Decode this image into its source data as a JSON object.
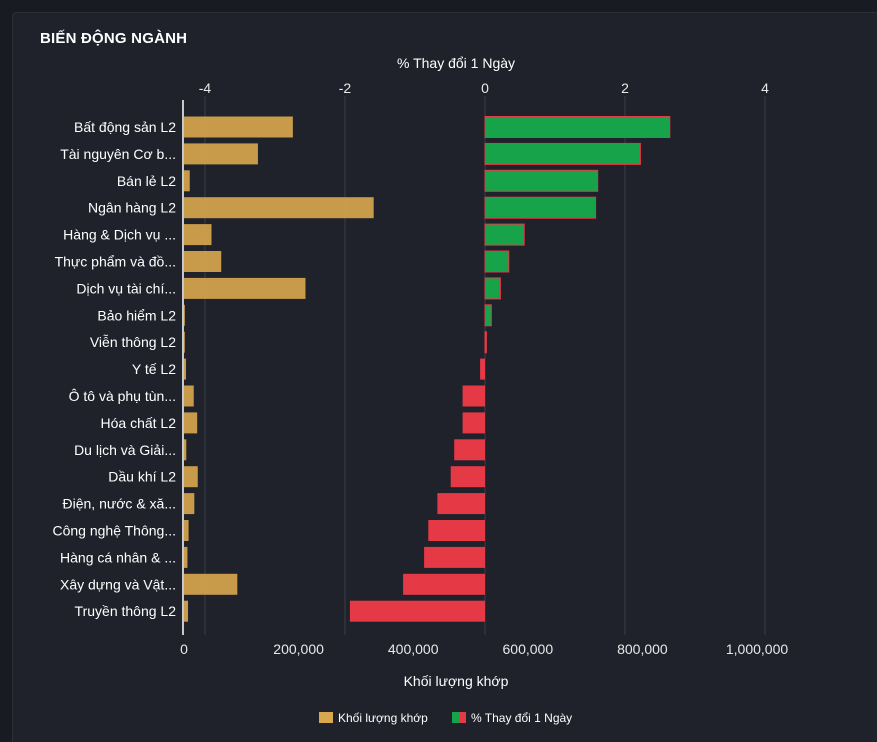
{
  "header": {
    "title": "BIẾN ĐỘNG NGÀNH"
  },
  "chart_data": {
    "type": "bar",
    "orientation": "horizontal",
    "categories": [
      "Bất động sản L2",
      "Tài nguyên Cơ b...",
      "Bán lẻ L2",
      "Ngân hàng L2",
      "Hàng & Dịch vụ ...",
      "Thực phẩm và đồ...",
      "Dịch vụ tài chí...",
      "Bảo hiểm L2",
      "Viễn thông L2",
      "Y tế L2",
      "Ô tô và phụ tùn...",
      "Hóa chất L2",
      "Du lịch và Giải...",
      "Dầu khí L2",
      "Điện, nước & xă...",
      "Công nghệ Thông...",
      "Hàng cá nhân & ...",
      "Xây dựng và Vật...",
      "Truyền thông L2"
    ],
    "series": [
      {
        "name": "Khối lượng khớp",
        "axis": "bottom",
        "color": "#d9a84e",
        "values": [
          190000,
          129000,
          10000,
          331000,
          48000,
          65000,
          212000,
          1500,
          300,
          3500,
          17000,
          23000,
          4000,
          24000,
          18000,
          8000,
          6000,
          93000,
          7000
        ]
      },
      {
        "name": "% Thay đổi 1 Ngày",
        "axis": "top",
        "color_up": "#16a34a",
        "color_down": "#e63946",
        "values": [
          2.64,
          2.22,
          1.61,
          1.58,
          0.56,
          0.34,
          0.22,
          0.09,
          0.02,
          -0.07,
          -0.32,
          -0.32,
          -0.44,
          -0.49,
          -0.68,
          -0.81,
          -0.87,
          -1.17,
          -1.93
        ]
      }
    ],
    "x_top": {
      "label": "% Thay đổi 1 Ngày",
      "range": [
        -4.3,
        4.5
      ],
      "ticks": [
        -4,
        -2,
        0,
        2,
        4
      ]
    },
    "x_bottom": {
      "label": "Khối lượng khớp",
      "range": [
        0,
        1075000
      ],
      "ticks": [
        0,
        200000,
        400000,
        600000,
        800000,
        1000000
      ],
      "tick_labels": [
        "0",
        "200,000",
        "400,000",
        "600,000",
        "800,000",
        "1,000,000"
      ]
    },
    "legend": {
      "placement": "bottom-center",
      "items": [
        "Khối lượng khớp",
        "% Thay đổi 1 Ngày"
      ]
    }
  }
}
